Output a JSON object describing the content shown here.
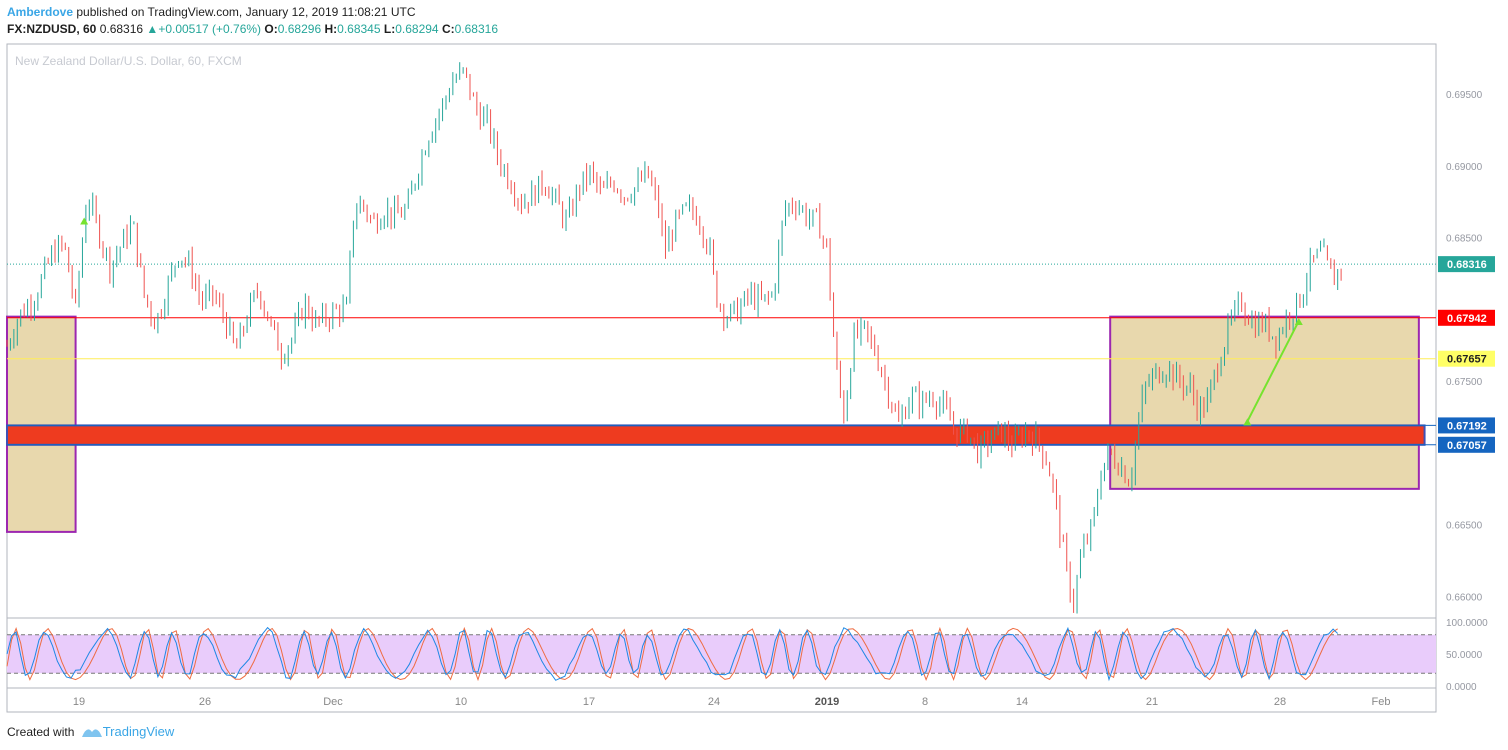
{
  "header": {
    "author": "Amberdove",
    "published_text": "published on TradingView.com, January 12, 2019 11:08:21 UTC",
    "symbol": "FX:NZDUSD, 60",
    "last": "0.68316",
    "change": "+0.00517 (+0.76%)",
    "o_label": "O:",
    "o": "0.68296",
    "h_label": "H:",
    "h": "0.68345",
    "l_label": "L:",
    "l": "0.68294",
    "c_label": "C:",
    "c": "0.68316"
  },
  "footer": {
    "created_with": "Created with",
    "brand": "TradingView"
  },
  "chart_data": {
    "type": "candlestick",
    "watermark": "New Zealand Dollar/U.S. Dollar, 60, FXCM",
    "y_range": [
      0.6585,
      0.6985
    ],
    "y_ticks": [
      0.695,
      0.69,
      0.685,
      0.6795,
      0.675,
      0.6705,
      0.665,
      0.66
    ],
    "y_tick_labels": [
      "0.69500",
      "0.69000",
      "0.68500",
      "0.67942",
      "0.67500",
      "0.67057",
      "0.66500",
      "0.66000"
    ],
    "x_ticks": [
      {
        "label": "19",
        "bold": false
      },
      {
        "label": "26",
        "bold": false
      },
      {
        "label": "Dec",
        "bold": false
      },
      {
        "label": "10",
        "bold": false
      },
      {
        "label": "17",
        "bold": false
      },
      {
        "label": "24",
        "bold": false
      },
      {
        "label": "2019",
        "bold": true
      },
      {
        "label": "8",
        "bold": false
      },
      {
        "label": "14",
        "bold": false
      },
      {
        "label": "21",
        "bold": false
      },
      {
        "label": "28",
        "bold": false
      },
      {
        "label": "Feb",
        "bold": false
      }
    ],
    "price_path": [
      [
        0,
        0.6775
      ],
      [
        2,
        0.6795
      ],
      [
        5,
        0.681
      ],
      [
        8,
        0.684
      ],
      [
        10,
        0.6845
      ],
      [
        12,
        0.68
      ],
      [
        14,
        0.688
      ],
      [
        16,
        0.6855
      ],
      [
        18,
        0.683
      ],
      [
        20,
        0.6845
      ],
      [
        22,
        0.686
      ],
      [
        24,
        0.681
      ],
      [
        26,
        0.679
      ],
      [
        28,
        0.6815
      ],
      [
        30,
        0.684
      ],
      [
        32,
        0.683
      ],
      [
        34,
        0.6805
      ],
      [
        36,
        0.681
      ],
      [
        38,
        0.6795
      ],
      [
        40,
        0.677
      ],
      [
        42,
        0.6795
      ],
      [
        44,
        0.6815
      ],
      [
        46,
        0.679
      ],
      [
        48,
        0.677
      ],
      [
        50,
        0.678
      ],
      [
        52,
        0.6805
      ],
      [
        54,
        0.679
      ],
      [
        56,
        0.6795
      ],
      [
        58,
        0.68
      ],
      [
        59.5,
        0.68
      ],
      [
        60.5,
        0.6865
      ],
      [
        62,
        0.6875
      ],
      [
        64,
        0.686
      ],
      [
        66,
        0.687
      ],
      [
        68,
        0.6865
      ],
      [
        70,
        0.687
      ],
      [
        72,
        0.69
      ],
      [
        74,
        0.6925
      ],
      [
        76,
        0.694
      ],
      [
        78,
        0.696
      ],
      [
        80,
        0.6965
      ],
      [
        82,
        0.694
      ],
      [
        84,
        0.693
      ],
      [
        86,
        0.6905
      ],
      [
        88,
        0.689
      ],
      [
        90,
        0.6875
      ],
      [
        92,
        0.688
      ],
      [
        94,
        0.689
      ],
      [
        96,
        0.6875
      ],
      [
        98,
        0.686
      ],
      [
        100,
        0.6885
      ],
      [
        102,
        0.6895
      ],
      [
        104,
        0.688
      ],
      [
        106,
        0.689
      ],
      [
        108,
        0.688
      ],
      [
        110,
        0.6885
      ],
      [
        112,
        0.6895
      ],
      [
        114,
        0.687
      ],
      [
        115,
        0.684
      ],
      [
        117,
        0.686
      ],
      [
        119,
        0.687
      ],
      [
        121,
        0.6865
      ],
      [
        123,
        0.684
      ],
      [
        124,
        0.681
      ],
      [
        126,
        0.6795
      ],
      [
        128,
        0.68
      ],
      [
        130,
        0.681
      ],
      [
        132,
        0.6805
      ],
      [
        134,
        0.681
      ],
      [
        136,
        0.687
      ],
      [
        138,
        0.6875
      ],
      [
        140,
        0.6865
      ],
      [
        142,
        0.686
      ],
      [
        143.5,
        0.684
      ],
      [
        145,
        0.676
      ],
      [
        146.5,
        0.6725
      ],
      [
        148,
        0.678
      ],
      [
        150,
        0.6785
      ],
      [
        152,
        0.677
      ],
      [
        154,
        0.6745
      ],
      [
        156,
        0.672
      ],
      [
        158,
        0.674
      ],
      [
        160,
        0.6735
      ],
      [
        162,
        0.674
      ],
      [
        164,
        0.673
      ],
      [
        166,
        0.6715
      ],
      [
        168,
        0.6715
      ],
      [
        170,
        0.67
      ],
      [
        172,
        0.671
      ],
      [
        174,
        0.6715
      ],
      [
        176,
        0.6705
      ],
      [
        178,
        0.6715
      ],
      [
        180,
        0.671
      ],
      [
        182,
        0.6695
      ],
      [
        183.5,
        0.6665
      ],
      [
        185,
        0.6625
      ],
      [
        186.5,
        0.6595
      ],
      [
        188,
        0.663
      ],
      [
        190,
        0.665
      ],
      [
        191.5,
        0.669
      ],
      [
        193,
        0.67
      ],
      [
        195,
        0.669
      ],
      [
        196.5,
        0.668
      ],
      [
        197.5,
        0.671
      ],
      [
        199,
        0.6745
      ],
      [
        201,
        0.6755
      ],
      [
        203,
        0.676
      ],
      [
        205,
        0.675
      ],
      [
        207,
        0.6745
      ],
      [
        208.5,
        0.673
      ],
      [
        210,
        0.6735
      ],
      [
        212,
        0.6765
      ],
      [
        214,
        0.679
      ],
      [
        216,
        0.6805
      ],
      [
        218,
        0.679
      ],
      [
        220,
        0.679
      ],
      [
        222,
        0.678
      ],
      [
        224,
        0.6795
      ],
      [
        226,
        0.6805
      ],
      [
        228,
        0.683
      ],
      [
        230,
        0.684
      ],
      [
        232,
        0.682
      ],
      [
        233.5,
        0.6831
      ]
    ],
    "last_price_line": 0.68316,
    "red_line": 0.67942,
    "yellow_line": 0.67657,
    "blue_lines": [
      0.67192,
      0.67057
    ],
    "zones": [
      {
        "type": "box",
        "fill": "#e8d8ad",
        "stroke": "#9c27b0",
        "x": [
          -2,
          12
        ],
        "y": [
          0.6795,
          0.6645
        ]
      },
      {
        "type": "box",
        "fill": "#e8d8ad",
        "stroke": "#9c27b0",
        "x": [
          193,
          247
        ],
        "y": [
          0.6795,
          0.6675
        ]
      },
      {
        "type": "band",
        "fill": "#ee3b1f",
        "stroke": "#3f51b5",
        "x": [
          -2,
          248
        ],
        "y": [
          0.67192,
          0.67057
        ]
      }
    ],
    "green_line": {
      "from": [
        217,
        0.6722
      ],
      "to": [
        226,
        0.6792
      ]
    },
    "labels": [
      {
        "text": "0.68316",
        "value": 0.68316,
        "bg": "#26a69a",
        "fg": "#ffffff"
      },
      {
        "text": "0.67942",
        "value": 0.67942,
        "bg": "#ff0000",
        "fg": "#ffffff"
      },
      {
        "text": "0.67657",
        "value": 0.67657,
        "bg": "#ffff66",
        "fg": "#1f1f1f"
      },
      {
        "text": "0.67192",
        "value": 0.67192,
        "bg": "#1565c0",
        "fg": "#ffffff"
      },
      {
        "text": "0.67057",
        "value": 0.67057,
        "bg": "#1565c0",
        "fg": "#ffffff"
      }
    ],
    "oscillator": {
      "range": [
        0,
        100
      ],
      "ticks": [
        "100.0000",
        "50.0000",
        "0.0000"
      ],
      "upper": 80,
      "lower": 20,
      "band_fill": "#e9ccfb"
    },
    "colors": {
      "up": "#26a69a",
      "down": "#ef5350",
      "k": "#1e88e5",
      "d": "#ef6c42"
    }
  }
}
